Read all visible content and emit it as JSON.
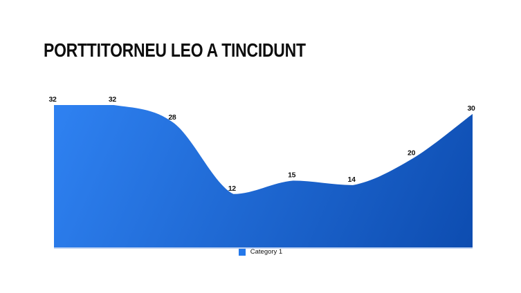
{
  "slide": {
    "title": "PORTTITORNEU LEO A TINCIDUNT"
  },
  "chart_data": {
    "type": "area",
    "title": "PORTTITORNEU LEO A TINCIDUNT",
    "series": [
      {
        "name": "Category 1",
        "values": [
          32,
          32,
          28,
          12,
          15,
          14,
          20,
          30
        ]
      }
    ],
    "data_labels": [
      "32",
      "32",
      "28",
      "12",
      "15",
      "14",
      "20",
      "30"
    ],
    "ylim": [
      0,
      32
    ],
    "grid": false,
    "x_axis_labels": [],
    "legend_position": "bottom",
    "line_style": "smooth",
    "colors": {
      "gradient_start": "#2f82f2",
      "gradient_end": "#0b49ac",
      "legend_swatch": "#2478ea",
      "baseline": "#a9c4ee",
      "label_color": "#111111"
    }
  }
}
